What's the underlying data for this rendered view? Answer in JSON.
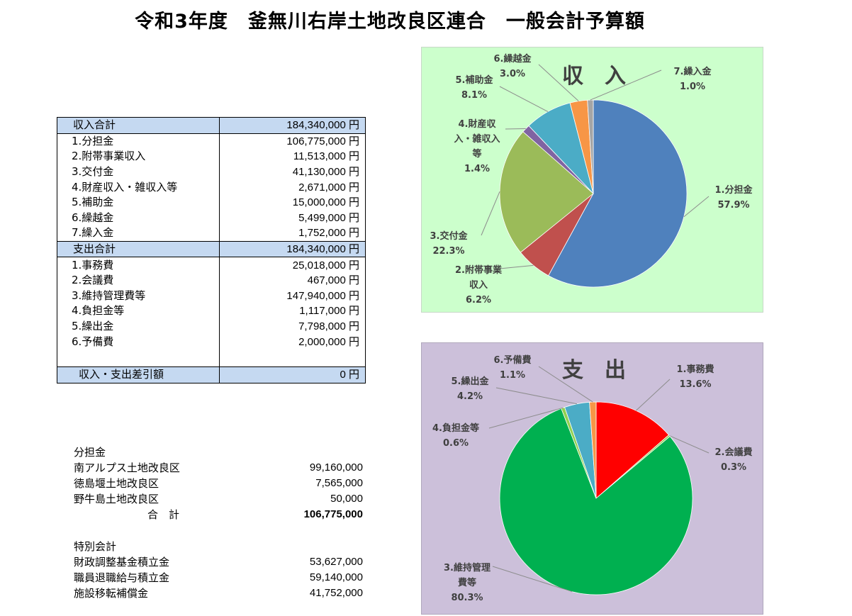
{
  "title": "令和3年度　釜無川右岸土地改良区連合　一般会計予算額",
  "budget": {
    "income_header": {
      "label": "収入合計",
      "value": "184,340,000 円"
    },
    "income_items": [
      {
        "label": "1.分担金",
        "value": "106,775,000 円"
      },
      {
        "label": "2.附帯事業収入",
        "value": "11,513,000 円"
      },
      {
        "label": "3.交付金",
        "value": "41,130,000 円"
      },
      {
        "label": "4.財産収入・雑収入等",
        "value": "2,671,000 円"
      },
      {
        "label": "5.補助金",
        "value": "15,000,000 円"
      },
      {
        "label": "6.繰越金",
        "value": "5,499,000 円"
      },
      {
        "label": "7.繰入金",
        "value": "1,752,000 円"
      }
    ],
    "expense_header": {
      "label": "支出合計",
      "value": "184,340,000 円"
    },
    "expense_items": [
      {
        "label": "1.事務費",
        "value": "25,018,000 円"
      },
      {
        "label": "2.会議費",
        "value": "467,000 円"
      },
      {
        "label": "3.維持管理費等",
        "value": "147,940,000 円"
      },
      {
        "label": "4.負担金等",
        "value": "1,117,000 円"
      },
      {
        "label": "5.繰出金",
        "value": "7,798,000 円"
      },
      {
        "label": "6.予備費",
        "value": "2,000,000 円"
      }
    ],
    "difference": {
      "label": "収入・支出差引額",
      "value": "0 円"
    }
  },
  "shares": {
    "heading": "分担金",
    "items": [
      {
        "label": "南アルプス土地改良区",
        "value": "99,160,000"
      },
      {
        "label": "徳島堰土地改良区",
        "value": "7,565,000"
      },
      {
        "label": "野牛島土地改良区",
        "value": "50,000"
      }
    ],
    "total": {
      "label": "合　計",
      "value": "106,775,000"
    }
  },
  "special": {
    "heading": "特別会計",
    "items": [
      {
        "label": "財政調整基金積立金",
        "value": "53,627,000"
      },
      {
        "label": "職員退職給与積立金",
        "value": "59,140,000"
      },
      {
        "label": "施設移転補償金",
        "value": "41,752,000"
      }
    ]
  },
  "chart_data": [
    {
      "type": "pie",
      "title": "収　入",
      "background": "#ccffcc",
      "slices": [
        {
          "label": "1.分担金",
          "value": 57.9,
          "pct": "57.9%",
          "color": "#4f81bd"
        },
        {
          "label": "2.附帯事業収入",
          "value": 6.2,
          "pct": "6.2%",
          "color": "#c0504d"
        },
        {
          "label": "3.交付金",
          "value": 22.3,
          "pct": "22.3%",
          "color": "#9bbb59"
        },
        {
          "label": "4.財産収入・雑収入等",
          "value": 1.4,
          "pct": "1.4%",
          "color": "#8064a2"
        },
        {
          "label": "5.補助金",
          "value": 8.1,
          "pct": "8.1%",
          "color": "#4bacc6"
        },
        {
          "label": "6.繰越金",
          "value": 3.0,
          "pct": "3.0%",
          "color": "#f79646"
        },
        {
          "label": "7.繰入金",
          "value": 1.0,
          "pct": "1.0%",
          "color": "#a5a5a5"
        }
      ]
    },
    {
      "type": "pie",
      "title": "支　出",
      "background": "#ccc0da",
      "slices": [
        {
          "label": "1.事務費",
          "value": 13.6,
          "pct": "13.6%",
          "color": "#ff0000"
        },
        {
          "label": "2.会議費",
          "value": 0.3,
          "pct": "0.3%",
          "color": "#92d050"
        },
        {
          "label": "3.維持管理費等",
          "value": 80.3,
          "pct": "80.3%",
          "color": "#00b050"
        },
        {
          "label": "4.負担金等",
          "value": 0.6,
          "pct": "0.6%",
          "color": "#92d050"
        },
        {
          "label": "5.繰出金",
          "value": 4.2,
          "pct": "4.2%",
          "color": "#4bacc6"
        },
        {
          "label": "6.予備費",
          "value": 1.1,
          "pct": "1.1%",
          "color": "#f79646"
        }
      ]
    }
  ]
}
